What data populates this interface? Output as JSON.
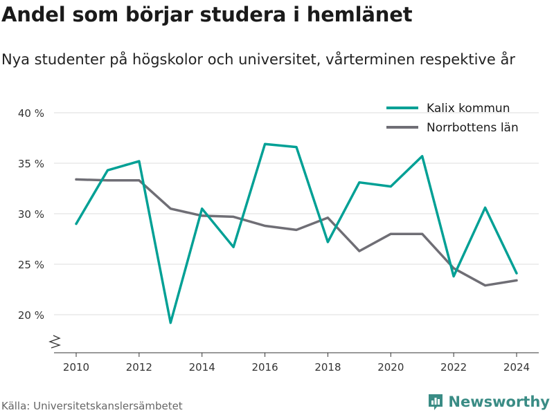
{
  "title": "Andel som börjar studera i hemlänet",
  "subtitle": "Nya studenter på högskolor och universitet, vårterminen respektive år",
  "source": "Källa: Universitetskanslersämbetet",
  "brand": {
    "name": "Newsworthy",
    "logo_icon": "bar-chart-icon",
    "color": "#3a8c85"
  },
  "chart_data": {
    "type": "line",
    "x": [
      2010,
      2011,
      2012,
      2013,
      2014,
      2015,
      2016,
      2017,
      2018,
      2019,
      2020,
      2021,
      2022,
      2023,
      2024
    ],
    "series": [
      {
        "name": "Kalix kommun",
        "color": "#00a095",
        "values": [
          29.0,
          34.3,
          35.2,
          19.2,
          30.5,
          26.7,
          36.9,
          36.6,
          27.2,
          33.1,
          32.7,
          35.7,
          23.8,
          30.6,
          24.1
        ]
      },
      {
        "name": "Norrbottens län",
        "color": "#6f6e75",
        "values": [
          33.4,
          33.3,
          33.3,
          30.5,
          29.8,
          29.7,
          28.8,
          28.4,
          29.6,
          26.3,
          28.0,
          28.0,
          24.6,
          22.9,
          23.4
        ]
      }
    ],
    "xticks": [
      "2010",
      "2012",
      "2014",
      "2016",
      "2018",
      "2020",
      "2022",
      "2024"
    ],
    "yticks": [
      "20 %",
      "25 %",
      "30 %",
      "35 %",
      "40 %"
    ],
    "ylim": [
      17,
      40
    ],
    "xlim": [
      2010,
      2024
    ],
    "grid": true,
    "legend_position": "top-right",
    "axis_break": true
  }
}
